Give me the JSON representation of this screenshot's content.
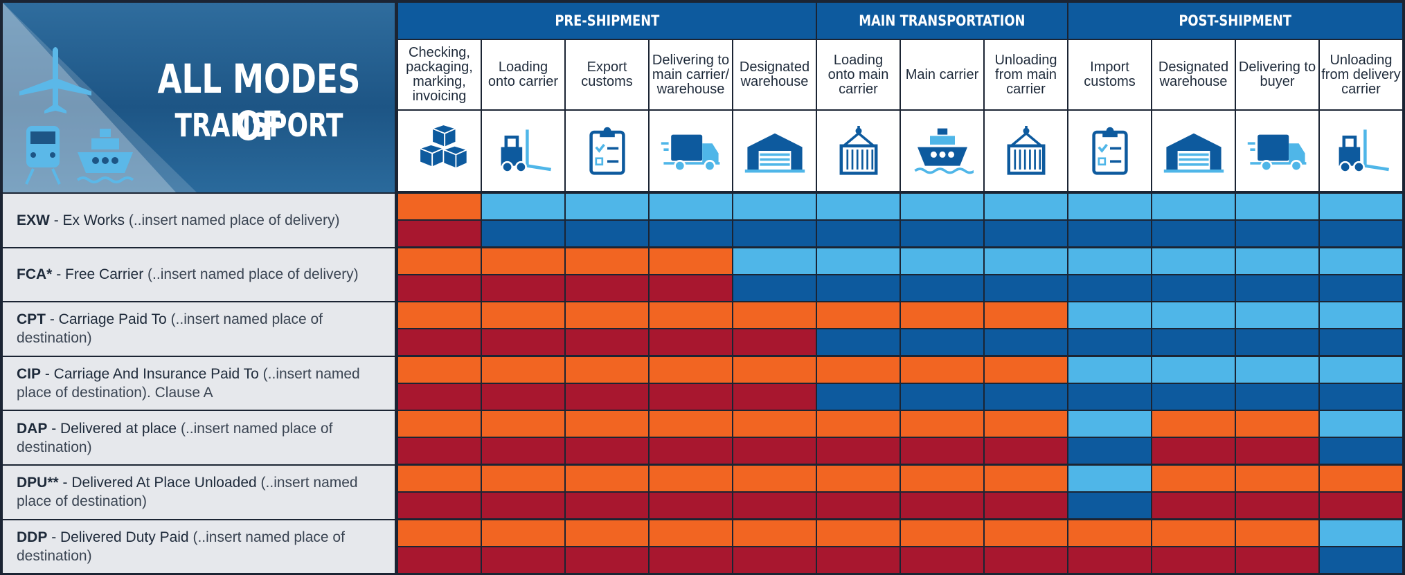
{
  "header": {
    "title_line1": "ALL MODES OF",
    "title_line2": "TRANSPORT",
    "groups": [
      "PRE-SHIPMENT",
      "MAIN TRANSPORTATION",
      "POST-SHIPMENT"
    ],
    "columns": [
      "Checking, packaging, marking, invoicing",
      "Loading onto carrier",
      "Export customs",
      "Delivering to main carrier/ warehouse",
      "Designated warehouse",
      "Loading onto main carrier",
      "Main carrier",
      "Unloading from main carrier",
      "Import customs",
      "Designated warehouse",
      "Delivering to buyer",
      "Unloading from delivery carrier"
    ]
  },
  "terms": [
    {
      "code": "EXW",
      "name": "- Ex Works",
      "detail": "(..insert named place of delivery)",
      "risk": [
        "#f26522",
        "#4fb6e8",
        "#4fb6e8",
        "#4fb6e8",
        "#4fb6e8",
        "#4fb6e8",
        "#4fb6e8",
        "#4fb6e8",
        "#4fb6e8",
        "#4fb6e8",
        "#4fb6e8",
        "#4fb6e8"
      ],
      "cost": [
        "#a8172f",
        "#0d5a9e",
        "#0d5a9e",
        "#0d5a9e",
        "#0d5a9e",
        "#0d5a9e",
        "#0d5a9e",
        "#0d5a9e",
        "#0d5a9e",
        "#0d5a9e",
        "#0d5a9e",
        "#0d5a9e"
      ]
    },
    {
      "code": "FCA*",
      "name": "- Free Carrier",
      "detail": "(..insert named place of delivery)",
      "risk": [
        "#f26522",
        "#f26522",
        "#f26522",
        "#f26522",
        "#4fb6e8",
        "#4fb6e8",
        "#4fb6e8",
        "#4fb6e8",
        "#4fb6e8",
        "#4fb6e8",
        "#4fb6e8",
        "#4fb6e8"
      ],
      "cost": [
        "#a8172f",
        "#a8172f",
        "#a8172f",
        "#a8172f",
        "#0d5a9e",
        "#0d5a9e",
        "#0d5a9e",
        "#0d5a9e",
        "#0d5a9e",
        "#0d5a9e",
        "#0d5a9e",
        "#0d5a9e"
      ]
    },
    {
      "code": "CPT",
      "name": "- Carriage Paid To",
      "detail": "(..insert named place of destination)",
      "risk": [
        "#f26522",
        "#f26522",
        "#f26522",
        "#f26522",
        "#f26522",
        "#f26522",
        "#f26522",
        "#f26522",
        "#4fb6e8",
        "#4fb6e8",
        "#4fb6e8",
        "#4fb6e8"
      ],
      "cost": [
        "#a8172f",
        "#a8172f",
        "#a8172f",
        "#a8172f",
        "#a8172f",
        "#0d5a9e",
        "#0d5a9e",
        "#0d5a9e",
        "#0d5a9e",
        "#0d5a9e",
        "#0d5a9e",
        "#0d5a9e"
      ]
    },
    {
      "code": "CIP",
      "name": "- Carriage And Insurance Paid To",
      "detail": "(..insert named place of destination). Clause A",
      "risk": [
        "#f26522",
        "#f26522",
        "#f26522",
        "#f26522",
        "#f26522",
        "#f26522",
        "#f26522",
        "#f26522",
        "#4fb6e8",
        "#4fb6e8",
        "#4fb6e8",
        "#4fb6e8"
      ],
      "cost": [
        "#a8172f",
        "#a8172f",
        "#a8172f",
        "#a8172f",
        "#a8172f",
        "#0d5a9e",
        "#0d5a9e",
        "#0d5a9e",
        "#0d5a9e",
        "#0d5a9e",
        "#0d5a9e",
        "#0d5a9e"
      ]
    },
    {
      "code": "DAP",
      "name": "- Delivered at place",
      "detail": "(..insert named place of destination)",
      "risk": [
        "#f26522",
        "#f26522",
        "#f26522",
        "#f26522",
        "#f26522",
        "#f26522",
        "#f26522",
        "#f26522",
        "#4fb6e8",
        "#f26522",
        "#f26522",
        "#4fb6e8"
      ],
      "cost": [
        "#a8172f",
        "#a8172f",
        "#a8172f",
        "#a8172f",
        "#a8172f",
        "#a8172f",
        "#a8172f",
        "#a8172f",
        "#0d5a9e",
        "#a8172f",
        "#a8172f",
        "#0d5a9e"
      ]
    },
    {
      "code": "DPU**",
      "name": "- Delivered At Place Unloaded",
      "detail": "(..insert named place of destination)",
      "risk": [
        "#f26522",
        "#f26522",
        "#f26522",
        "#f26522",
        "#f26522",
        "#f26522",
        "#f26522",
        "#f26522",
        "#4fb6e8",
        "#f26522",
        "#f26522",
        "#f26522"
      ],
      "cost": [
        "#a8172f",
        "#a8172f",
        "#a8172f",
        "#a8172f",
        "#a8172f",
        "#a8172f",
        "#a8172f",
        "#a8172f",
        "#0d5a9e",
        "#a8172f",
        "#a8172f",
        "#a8172f"
      ]
    },
    {
      "code": "DDP",
      "name": "- Delivered Duty Paid",
      "detail": "(..insert named place of destination)",
      "risk": [
        "#f26522",
        "#f26522",
        "#f26522",
        "#f26522",
        "#f26522",
        "#f26522",
        "#f26522",
        "#f26522",
        "#f26522",
        "#f26522",
        "#f26522",
        "#4fb6e8"
      ],
      "cost": [
        "#a8172f",
        "#a8172f",
        "#a8172f",
        "#a8172f",
        "#a8172f",
        "#a8172f",
        "#a8172f",
        "#a8172f",
        "#a8172f",
        "#a8172f",
        "#a8172f",
        "#0d5a9e"
      ]
    }
  ]
}
